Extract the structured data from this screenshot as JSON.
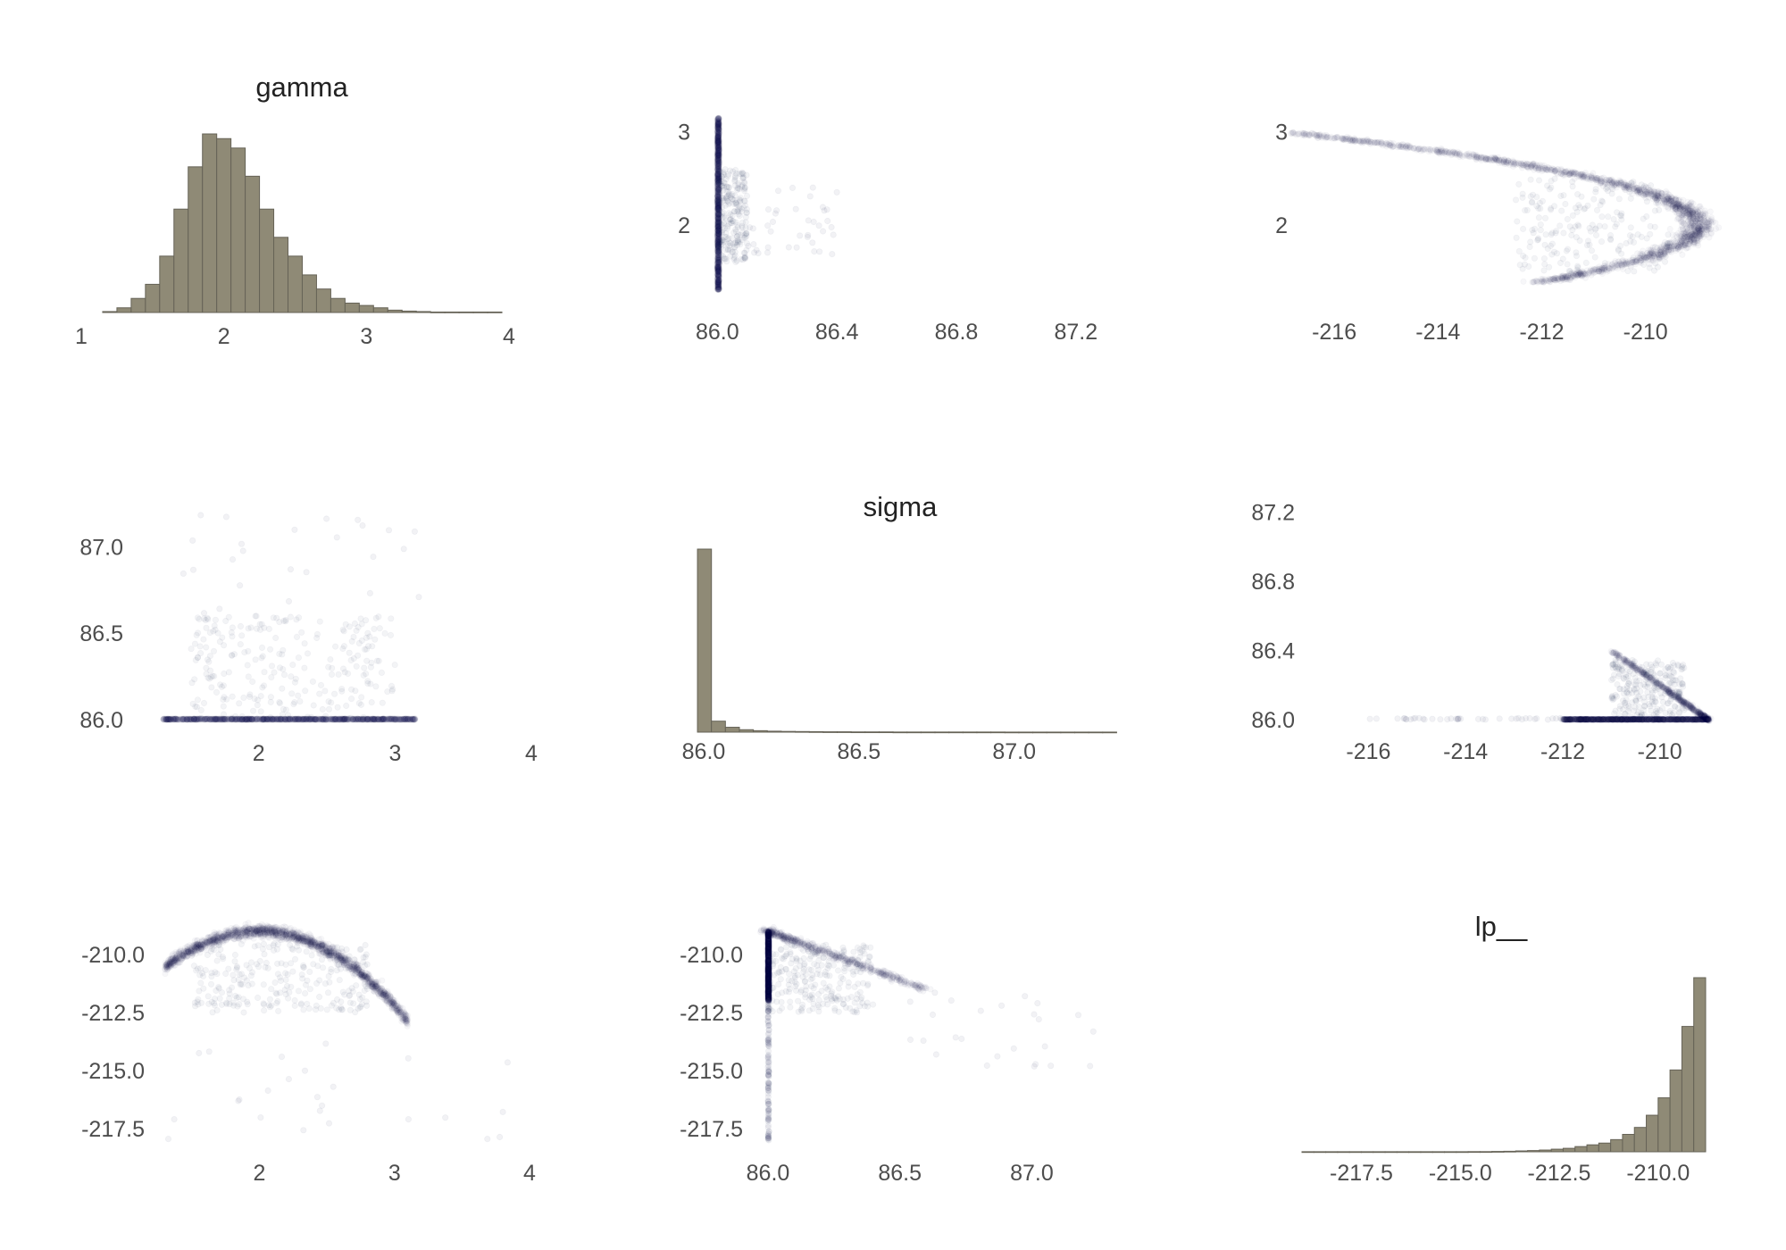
{
  "colors": {
    "bar_fill": "#8f8a76",
    "bar_stroke": "#666357",
    "point": "#1b2556"
  },
  "chart_data": [
    {
      "id": "gamma-hist",
      "type": "bar",
      "title": "gamma",
      "xlabel": "",
      "ylabel": "",
      "xlim": [
        1,
        4
      ],
      "grid": false,
      "xticks": [
        {
          "v": 1,
          "l": "1"
        },
        {
          "v": 2,
          "l": "2"
        },
        {
          "v": 3,
          "l": "3"
        },
        {
          "v": 4,
          "l": "4"
        }
      ],
      "bin_edges": [
        1.15,
        1.25,
        1.35,
        1.45,
        1.55,
        1.65,
        1.75,
        1.85,
        1.95,
        2.05,
        2.15,
        2.25,
        2.35,
        2.45,
        2.55,
        2.65,
        2.75,
        2.85,
        2.95,
        3.05,
        3.15,
        3.25,
        3.35,
        3.45,
        3.55,
        3.65,
        3.75,
        3.85,
        3.95
      ],
      "values": [
        0.2,
        1,
        3,
        6,
        12,
        22,
        31,
        38,
        37,
        35,
        29,
        22,
        16,
        12,
        8,
        5,
        3,
        2,
        1.5,
        1,
        0.5,
        0.3,
        0.2,
        0.1,
        0.1,
        0.1,
        0.1,
        0.1
      ]
    },
    {
      "id": "sigma-vs-gamma-scatter",
      "type": "scatter",
      "title": "",
      "xlabel": "",
      "ylabel": "",
      "xlim": [
        85.99,
        87.35
      ],
      "ylim": [
        1.25,
        3.6
      ],
      "grid": false,
      "xticks": [
        {
          "v": 86.0,
          "l": "86.0"
        },
        {
          "v": 86.4,
          "l": "86.4"
        },
        {
          "v": 86.8,
          "l": "86.8"
        },
        {
          "v": 87.2,
          "l": "87.2"
        }
      ],
      "yticks": [
        {
          "v": 2,
          "l": "2"
        },
        {
          "v": 3,
          "l": "3"
        }
      ],
      "clusters": [
        {
          "x": [
            86.0,
            86.006
          ],
          "y": [
            1.3,
            3.15
          ],
          "n": 1800,
          "alpha": 0.03
        },
        {
          "x": [
            86.0,
            86.1
          ],
          "y": [
            1.6,
            2.6
          ],
          "n": 250,
          "alpha": 0.05
        },
        {
          "x": [
            86.1,
            86.4
          ],
          "y": [
            1.6,
            2.4
          ],
          "n": 40,
          "alpha": 0.06
        }
      ]
    },
    {
      "id": "lp-vs-gamma-scatter",
      "type": "scatter",
      "title": "",
      "xlabel": "",
      "ylabel": "",
      "xlim": [
        -216.5,
        -208.6
      ],
      "ylim": [
        1.25,
        3.6
      ],
      "grid": false,
      "xticks": [
        {
          "v": -216,
          "l": "-216"
        },
        {
          "v": -214,
          "l": "-214"
        },
        {
          "v": -212,
          "l": "-212"
        },
        {
          "v": -210,
          "l": "-210"
        }
      ],
      "yticks": [
        {
          "v": 2,
          "l": "2"
        },
        {
          "v": 3,
          "l": "3"
        }
      ],
      "clusters": [
        {
          "curve": "parabola_x",
          "vertex_x": -209.0,
          "vertex_y": 2.0,
          "k": 8.0,
          "y": [
            1.38,
            3.0
          ],
          "width": 0.15,
          "n": 1900,
          "alpha": 0.035
        },
        {
          "x": [
            -212.5,
            -209.5
          ],
          "y": [
            1.5,
            2.5
          ],
          "n": 200,
          "alpha": 0.05
        }
      ]
    },
    {
      "id": "gamma-vs-sigma-scatter",
      "type": "scatter",
      "title": "",
      "xlabel": "",
      "ylabel": "",
      "xlim": [
        1.15,
        4.0
      ],
      "ylim": [
        85.98,
        87.27
      ],
      "grid": false,
      "xticks": [
        {
          "v": 2,
          "l": "2"
        },
        {
          "v": 3,
          "l": "3"
        },
        {
          "v": 4,
          "l": "4"
        }
      ],
      "yticks": [
        {
          "v": 86.0,
          "l": "86.0"
        },
        {
          "v": 86.5,
          "l": "86.5"
        },
        {
          "v": 87.0,
          "l": "87.0"
        }
      ],
      "clusters": [
        {
          "x": [
            1.3,
            3.15
          ],
          "y": [
            86.0,
            86.006
          ],
          "n": 1800,
          "alpha": 0.03
        },
        {
          "x": [
            1.5,
            3.0
          ],
          "y": [
            86.0,
            86.6
          ],
          "n": 250,
          "alpha": 0.05
        },
        {
          "x": [
            1.4,
            3.2
          ],
          "y": [
            86.6,
            87.2
          ],
          "n": 25,
          "alpha": 0.06
        }
      ]
    },
    {
      "id": "sigma-hist",
      "type": "bar",
      "title": "sigma",
      "xlabel": "",
      "ylabel": "",
      "xlim": [
        86.0,
        87.3
      ],
      "grid": false,
      "xticks": [
        {
          "v": 86.0,
          "l": "86.0"
        },
        {
          "v": 86.5,
          "l": "86.5"
        },
        {
          "v": 87.0,
          "l": "87.0"
        }
      ],
      "bin_edges": [
        85.98,
        86.025,
        86.07,
        86.115,
        86.16,
        86.205,
        86.25,
        86.295,
        86.34,
        86.385,
        86.43,
        86.475,
        86.52,
        86.565,
        86.61,
        86.655,
        86.7,
        86.745,
        86.79,
        86.835,
        86.88,
        86.925,
        86.97,
        87.015,
        87.06,
        87.105,
        87.15,
        87.195,
        87.24,
        87.285,
        87.33
      ],
      "values": [
        150,
        9,
        4,
        2,
        1.2,
        0.8,
        0.6,
        0.5,
        0.4,
        0.3,
        0.3,
        0.2,
        0.2,
        0.2,
        0.1,
        0.1,
        0.1,
        0.1,
        0.1,
        0.1,
        0.1,
        0.1,
        0.05,
        0.05,
        0.05,
        0.05,
        0.05,
        0.05,
        0.05,
        0.05
      ]
    },
    {
      "id": "lp-vs-sigma-scatter",
      "type": "scatter",
      "title": "",
      "xlabel": "",
      "ylabel": "",
      "xlim": [
        -217.0,
        -208.8
      ],
      "ylim": [
        85.98,
        87.27
      ],
      "grid": false,
      "xticks": [
        {
          "v": -216,
          "l": "-216"
        },
        {
          "v": -214,
          "l": "-214"
        },
        {
          "v": -212,
          "l": "-212"
        },
        {
          "v": -210,
          "l": "-210"
        }
      ],
      "yticks": [
        {
          "v": 86.0,
          "l": "86.0"
        },
        {
          "v": 86.4,
          "l": "86.4"
        },
        {
          "v": 86.8,
          "l": "86.8"
        },
        {
          "v": 87.2,
          "l": "87.2"
        }
      ],
      "clusters": [
        {
          "x": [
            -212.0,
            -209.0
          ],
          "y": [
            86.0,
            86.004
          ],
          "n": 1400,
          "alpha": 0.04
        },
        {
          "curve": "edge_line",
          "x0": -209.0,
          "y0": 86.0,
          "x1": -211.0,
          "y1": 86.4,
          "width": 0.08,
          "n": 500,
          "alpha": 0.04
        },
        {
          "x": [
            -211.0,
            -209.5
          ],
          "y": [
            86.0,
            86.35
          ],
          "n": 250,
          "alpha": 0.05
        },
        {
          "x": [
            -216.0,
            -212.0
          ],
          "y": [
            86.0,
            86.01
          ],
          "n": 40,
          "alpha": 0.06
        }
      ]
    },
    {
      "id": "gamma-vs-lp-scatter",
      "type": "scatter",
      "title": "",
      "xlabel": "",
      "ylabel": "",
      "xlim": [
        1.15,
        4.0
      ],
      "ylim": [
        -218.5,
        -208.5
      ],
      "grid": false,
      "xticks": [
        {
          "v": 2,
          "l": "2"
        },
        {
          "v": 3,
          "l": "3"
        },
        {
          "v": 4,
          "l": "4"
        }
      ],
      "yticks": [
        {
          "v": -210.0,
          "l": "-210.0"
        },
        {
          "v": -212.5,
          "l": "-212.5"
        },
        {
          "v": -215.0,
          "l": "-215.0"
        },
        {
          "v": -217.5,
          "l": "-217.5"
        }
      ],
      "clusters": [
        {
          "curve": "parabola_y",
          "vertex_x": 2.0,
          "vertex_y": -209.0,
          "k": 3.2,
          "x": [
            1.3,
            3.1
          ],
          "width": 0.12,
          "n": 1900,
          "alpha": 0.035
        },
        {
          "x": [
            1.5,
            2.8
          ],
          "y": [
            -212.5,
            -209.5
          ],
          "n": 250,
          "alpha": 0.05
        },
        {
          "x": [
            1.3,
            3.9
          ],
          "y": [
            -218.0,
            -213.5
          ],
          "n": 25,
          "alpha": 0.06
        }
      ]
    },
    {
      "id": "sigma-vs-lp-scatter",
      "type": "scatter",
      "title": "",
      "xlabel": "",
      "ylabel": "",
      "xlim": [
        85.99,
        87.3
      ],
      "ylim": [
        -218.5,
        -208.5
      ],
      "grid": false,
      "xticks": [
        {
          "v": 86.0,
          "l": "86.0"
        },
        {
          "v": 86.5,
          "l": "86.5"
        },
        {
          "v": 87.0,
          "l": "87.0"
        }
      ],
      "yticks": [
        {
          "v": -210.0,
          "l": "-210.0"
        },
        {
          "v": -212.5,
          "l": "-212.5"
        },
        {
          "v": -215.0,
          "l": "-215.0"
        },
        {
          "v": -217.5,
          "l": "-217.5"
        }
      ],
      "clusters": [
        {
          "x": [
            86.0,
            86.004
          ],
          "y": [
            -212.0,
            -209.0
          ],
          "n": 1300,
          "alpha": 0.04
        },
        {
          "x": [
            86.0,
            86.004
          ],
          "y": [
            -218.0,
            -212.0
          ],
          "n": 120,
          "alpha": 0.06
        },
        {
          "curve": "edge_line",
          "x0": 86.0,
          "y0": -209.0,
          "x1": 86.6,
          "y1": -211.5,
          "width": 0.15,
          "n": 500,
          "alpha": 0.04
        },
        {
          "x": [
            86.0,
            86.4
          ],
          "y": [
            -212.5,
            -209.5
          ],
          "n": 250,
          "alpha": 0.05
        },
        {
          "x": [
            86.5,
            87.25
          ],
          "y": [
            -215.0,
            -211.5
          ],
          "n": 25,
          "alpha": 0.06
        }
      ]
    },
    {
      "id": "lp-hist",
      "type": "bar",
      "title": "lp__",
      "xlabel": "",
      "ylabel": "",
      "xlim": [
        -219.0,
        -208.8
      ],
      "grid": false,
      "xticks": [
        {
          "v": -217.5,
          "l": "-217.5"
        },
        {
          "v": -215.0,
          "l": "-215.0"
        },
        {
          "v": -212.5,
          "l": "-212.5"
        },
        {
          "v": -210.0,
          "l": "-210.0"
        }
      ],
      "bin_edges": [
        -219.0,
        -218.7,
        -218.4,
        -218.1,
        -217.8,
        -217.5,
        -217.2,
        -216.9,
        -216.6,
        -216.3,
        -216.0,
        -215.7,
        -215.4,
        -215.1,
        -214.8,
        -214.5,
        -214.2,
        -213.9,
        -213.6,
        -213.3,
        -213.0,
        -212.7,
        -212.4,
        -212.1,
        -211.8,
        -211.5,
        -211.2,
        -210.9,
        -210.6,
        -210.3,
        -210.0,
        -209.7,
        -209.4,
        -209.1,
        -208.8
      ],
      "values": [
        0.05,
        0.05,
        0.05,
        0.05,
        0.05,
        0.05,
        0.05,
        0.05,
        0.05,
        0.05,
        0.05,
        0.05,
        0.05,
        0.05,
        0.1,
        0.1,
        0.2,
        0.3,
        0.5,
        0.7,
        1,
        1.5,
        2,
        3,
        4,
        5,
        7,
        10,
        14,
        21,
        31,
        47,
        72,
        100
      ]
    }
  ]
}
